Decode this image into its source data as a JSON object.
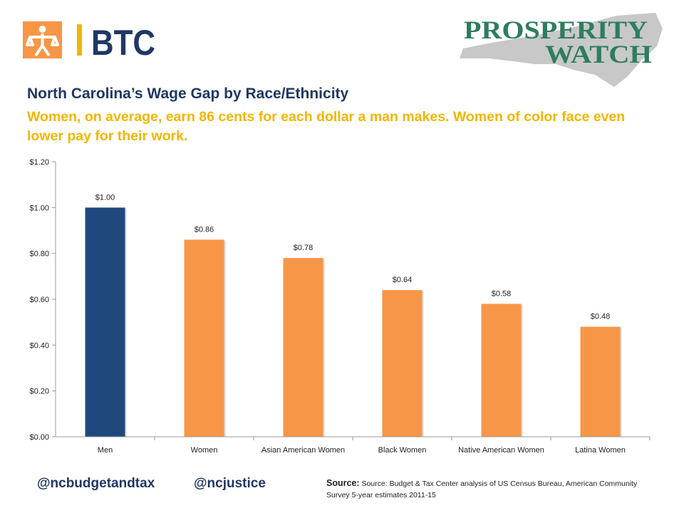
{
  "branding": {
    "btc_text": "BTC",
    "pw_line1": "PROSPERITY",
    "pw_line2": "WATCH"
  },
  "colors": {
    "men_bar": "#1f497d",
    "women_bar": "#f79646",
    "title": "#1f3864",
    "subtitle": "#f2b600",
    "btc_orange": "#f79646",
    "btc_navy": "#1f3864",
    "pw_green": "#2e7d5e",
    "state_gray": "#c8c8c8"
  },
  "chart_data": {
    "type": "bar",
    "title": "North Carolina’s Wage Gap by Race/Ethnicity",
    "subtitle": "Women, on average, earn 86 cents for each dollar a man makes. Women of color face even lower pay for their work.",
    "categories": [
      "Men",
      "Women",
      "Asian American Women",
      "Black Women",
      "Native American Women",
      "Latina Women"
    ],
    "values": [
      1.0,
      0.86,
      0.78,
      0.64,
      0.58,
      0.48
    ],
    "data_labels": [
      "$1.00",
      "$0.86",
      "$0.78",
      "$0.64",
      "$0.58",
      "$0.48"
    ],
    "ylim": [
      0,
      1.2
    ],
    "yticks": [
      0,
      0.2,
      0.4,
      0.6,
      0.8,
      1.0,
      1.2
    ],
    "ytick_labels": [
      "$0.00",
      "$0.20",
      "$0.40",
      "$0.60",
      "$0.80",
      "$1.00",
      "$1.20"
    ],
    "xlabel": "",
    "ylabel": "",
    "grid": false,
    "legend": "none"
  },
  "footer": {
    "handle1": "@ncbudgetandtax",
    "handle2": "@ncjustice",
    "source_label": "Source:",
    "source_text": "Source: Budget & Tax Center analysis of US Census Bureau, American Community Survey 5-year estimates 2011-15"
  }
}
